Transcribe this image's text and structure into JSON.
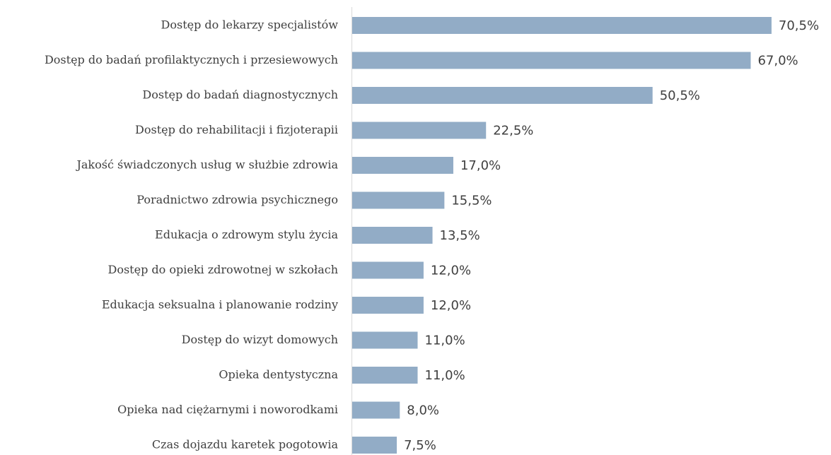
{
  "chart_data": {
    "type": "barh",
    "categories": [
      "Dostęp do lekarzy specjalistów",
      "Dostęp do badań profilaktycznych i przesiewowych",
      "Dostęp do badań diagnostycznych",
      "Dostęp do rehabilitacji i fizjoterapii",
      "Jakość świadczonych usług w służbie zdrowia",
      "Poradnictwo zdrowia psychicznego",
      "Edukacja o zdrowym stylu życia",
      "Dostęp do opieki zdrowotnej w szkołach",
      "Edukacja seksualna i planowanie rodziny",
      "Dostęp do wizyt domowych",
      "Opieka dentystyczna",
      "Opieka nad ciężarnymi i noworodkami",
      "Czas dojazdu karetek pogotowia"
    ],
    "values": [
      70.5,
      67.0,
      50.5,
      22.5,
      17.0,
      15.5,
      13.5,
      12.0,
      12.0,
      11.0,
      11.0,
      8.0,
      7.5
    ],
    "value_labels": [
      "70,5%",
      "67,0%",
      "50,5%",
      "22,5%",
      "17,0%",
      "15,5%",
      "13,5%",
      "12,0%",
      "12,0%",
      "11,0%",
      "11,0%",
      "8,0%",
      "7,5%"
    ],
    "color": "#92acc6"
  }
}
